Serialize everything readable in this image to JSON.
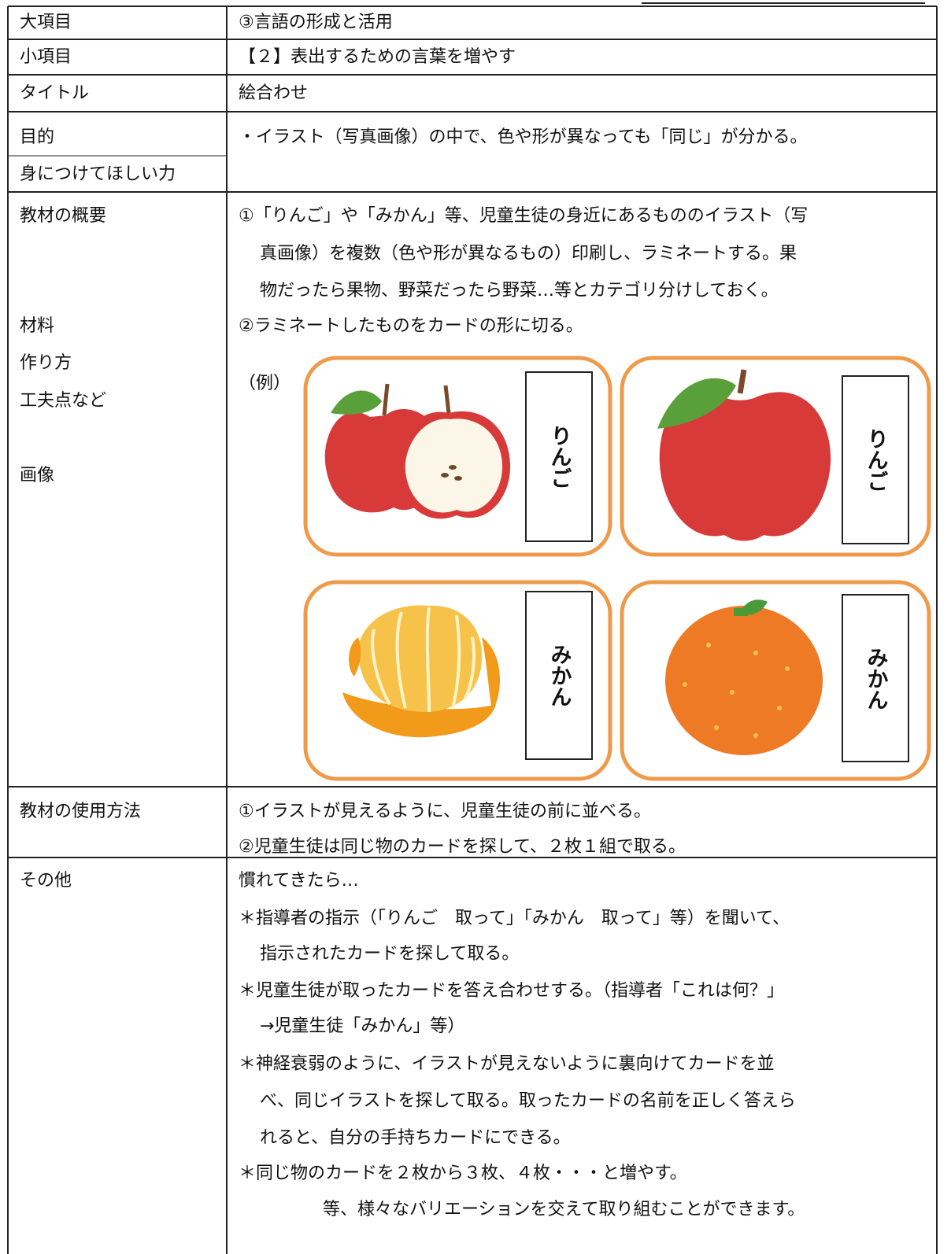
{
  "table": {
    "rows": [
      {
        "label": [
          "大項目"
        ],
        "content": [
          "③言語の形成と活用"
        ]
      },
      {
        "label": [
          "小項目"
        ],
        "content": [
          "【２】表出するための言葉を増やす"
        ]
      },
      {
        "label": [
          "タイトル"
        ],
        "content": [
          "絵合わせ"
        ]
      },
      {
        "label": [
          "目的",
          "身につけてほしい力"
        ],
        "content": [
          "・イラスト（写真画像）の中で、色や形が異なっても「同じ」が分かる。"
        ]
      },
      {
        "label": [
          "教材の概要",
          "材料",
          "作り方",
          "工夫点など",
          "画像"
        ],
        "content": [
          "①「りんご」や「みかん」等、児童生徒の身近にあるもののイラスト（写",
          "真画像）を複数（色や形が異なるもの）印刷し、ラミネートする。果",
          "物だったら果物、野菜だったら野菜…等とカテゴリ分けしておく。",
          "②ラミネートしたものをカードの形に切る。",
          "（例）"
        ],
        "cards": [
          "りんご",
          "りんご",
          "みかん",
          "みかん"
        ]
      },
      {
        "label": [
          "教材の使用方法"
        ],
        "content": [
          "①イラストが見えるように、児童生徒の前に並べる。",
          "②児童生徒は同じ物のカードを探して、２枚１組で取る。"
        ]
      },
      {
        "label": [
          "その他"
        ],
        "content": [
          "慣れてきたら…",
          "＊指導者の指示（「りんご　取って」「みかん　取って」等）を聞いて、",
          "指示されたカードを探して取る。",
          "＊児童生徒が取ったカードを答え合わせする。（指導者「これは何？」",
          "→児童生徒「みかん」等）",
          "＊神経衰弱のように、イラストが見えないように裏向けてカードを並",
          "べ、同じイラストを探して取る。取ったカードの名前を正しく答えら",
          "れると、自分の手持ちカードにできる。",
          "＊同じ物のカードを２枚から３枚、４枚・・・と増やす。",
          "等、様々なバリエーションを交えて取り組むことができます。"
        ]
      }
    ]
  }
}
